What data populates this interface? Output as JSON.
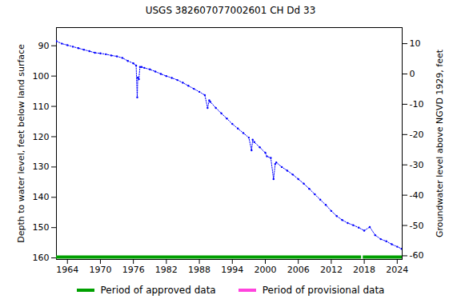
{
  "chart_data": {
    "type": "line",
    "title": "USGS 382607077002601 CH Dd  33",
    "y_label": "Depth to water level, feet below land surface",
    "y2_label": "Groundwater level above NGVD 1929, feet",
    "color": "#0000ff",
    "marker": "dot",
    "line_style": "dotted",
    "x": [
      1962.0,
      1963,
      1964,
      1965,
      1966,
      1967,
      1968,
      1969,
      1970,
      1971,
      1972,
      1973,
      1974,
      1975,
      1976,
      1976.5,
      1976.7,
      1976.8,
      1977,
      1977.2,
      1977.5,
      1978,
      1979,
      1980,
      1981,
      1982,
      1983,
      1984,
      1985,
      1986,
      1987,
      1988,
      1989,
      1989.5,
      1989.8,
      1990,
      1991,
      1992,
      1993,
      1994,
      1995,
      1996,
      1997,
      1997.5,
      1997.7,
      1998,
      1999,
      2000,
      2000.3,
      2001,
      2001.5,
      2001.8,
      2002,
      2003,
      2004,
      2005,
      2006,
      2007,
      2008,
      2009,
      2010,
      2011,
      2012,
      2013,
      2014,
      2015,
      2016,
      2017,
      2018,
      2019,
      2020,
      2021,
      2022,
      2023,
      2024,
      2024.8
    ],
    "values": [
      88.5,
      89.3,
      89.8,
      90.3,
      90.8,
      91.3,
      91.8,
      92.3,
      92.5,
      92.8,
      93.2,
      93.5,
      94.0,
      95.0,
      95.8,
      96.5,
      107.0,
      100.5,
      101.0,
      97.0,
      97.0,
      97.3,
      97.8,
      98.5,
      99.3,
      100.0,
      100.6,
      101.3,
      102.2,
      103.2,
      104.2,
      105.2,
      106.3,
      110.5,
      108.0,
      108.5,
      110.5,
      112.3,
      114.0,
      115.8,
      117.3,
      118.8,
      120.3,
      124.5,
      121.0,
      121.8,
      123.5,
      125.3,
      126.5,
      127.0,
      134.0,
      129.0,
      128.5,
      130.0,
      131.2,
      132.5,
      134.0,
      135.5,
      137.2,
      139.0,
      140.8,
      142.5,
      144.5,
      146.2,
      147.5,
      148.5,
      149.2,
      150.0,
      151.0,
      149.8,
      152.5,
      153.8,
      154.5,
      155.5,
      156.3,
      157.0
    ],
    "xlim": [
      1962,
      2024.9
    ],
    "xticks": [
      1964,
      1970,
      1976,
      1982,
      1988,
      1994,
      2000,
      2006,
      2012,
      2018,
      2024
    ],
    "ylim": [
      84,
      160.5
    ],
    "yticks": [
      90,
      100,
      110,
      120,
      130,
      140,
      150,
      160
    ],
    "y2lim": [
      15.3,
      -61.2
    ],
    "y2ticks": [
      10,
      0,
      -10,
      -20,
      -30,
      -40,
      -50,
      -60
    ],
    "grid": false,
    "periods": [
      {
        "name": "Period of approved data",
        "color": "#00a000",
        "ranges": [
          [
            1962,
            2017.5
          ],
          [
            2017.8,
            2024.9
          ]
        ]
      },
      {
        "name": "Period of provisional data",
        "color": "#ff44dd",
        "ranges": []
      }
    ]
  }
}
